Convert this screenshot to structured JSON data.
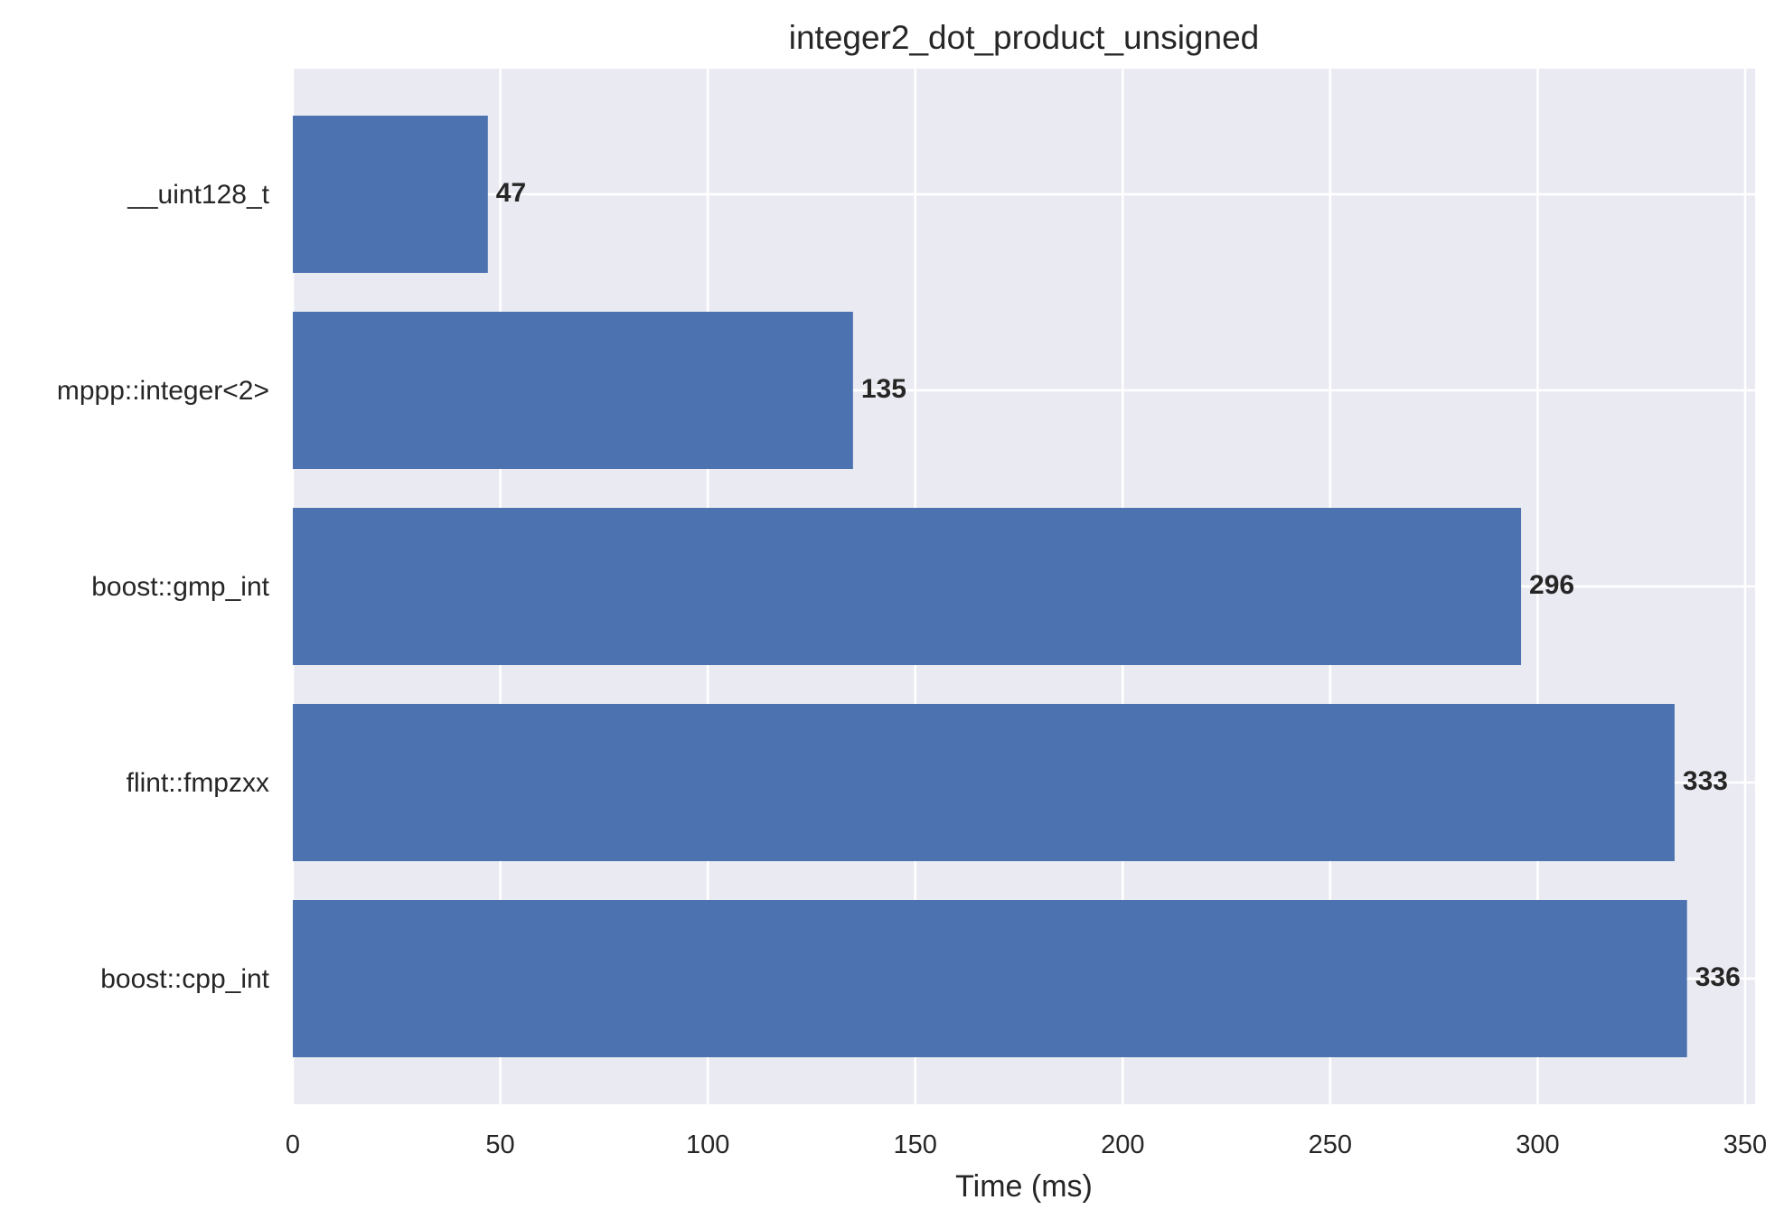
{
  "chart_data": {
    "type": "bar",
    "orientation": "horizontal",
    "title": "integer2_dot_product_unsigned",
    "xlabel": "Time (ms)",
    "ylabel": "",
    "categories": [
      "__uint128_t",
      "mppp::integer<2>",
      "boost::gmp_int",
      "flint::fmpzxx",
      "boost::cpp_int"
    ],
    "values": [
      47,
      135,
      296,
      333,
      336
    ],
    "data_labels": [
      "47",
      "135",
      "296",
      "333",
      "336"
    ],
    "xlim": [
      0,
      352
    ],
    "xticks": [
      0,
      50,
      100,
      150,
      200,
      250,
      300,
      350
    ],
    "xtick_labels": [
      "0",
      "50",
      "100",
      "150",
      "200",
      "250",
      "300",
      "350"
    ],
    "grid": true,
    "colors": {
      "bar": "#4c72b0",
      "plot_background": "#eaeaf2",
      "grid": "#ffffff",
      "text": "#262626"
    }
  }
}
